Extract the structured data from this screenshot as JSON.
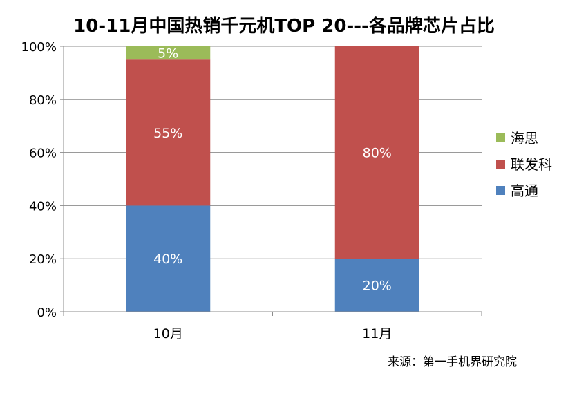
{
  "chart_data": {
    "type": "bar",
    "stacked": true,
    "title": "10-11月中国热销千元机TOP 20---各品牌芯片占比",
    "categories": [
      "10月",
      "11月"
    ],
    "series": [
      {
        "name": "高通",
        "values": [
          40,
          20
        ],
        "labels": [
          "40%",
          "20%"
        ],
        "color": "#4F81BD"
      },
      {
        "name": "联发科",
        "values": [
          55,
          80
        ],
        "labels": [
          "55%",
          "80%"
        ],
        "color": "#C0504D"
      },
      {
        "name": "海思",
        "values": [
          5,
          0
        ],
        "labels": [
          "5%",
          ""
        ],
        "color": "#9BBB59"
      }
    ],
    "legend_order": [
      "海思",
      "联发科",
      "高通"
    ],
    "legend_position": "right",
    "y_ticks": [
      "0%",
      "20%",
      "40%",
      "60%",
      "80%",
      "100%"
    ],
    "ylim": [
      0,
      100
    ],
    "grid": true,
    "source": "来源：第一手机界研究院"
  }
}
